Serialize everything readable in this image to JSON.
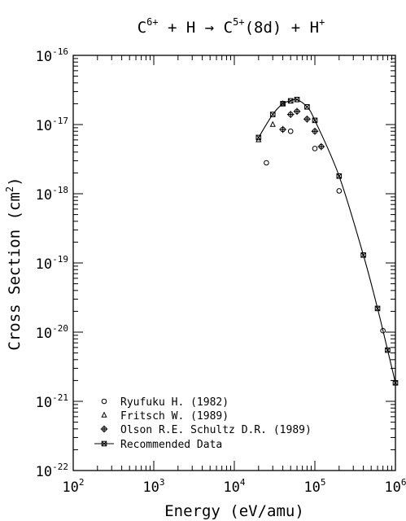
{
  "chart_data": {
    "type": "scatter",
    "title": {
      "part1": "C",
      "sup1": "6+",
      "part2": " + H → C",
      "sup2": "5+",
      "part3": "(8d) + H",
      "sup3": "+"
    },
    "xlabel": "Energy (eV/amu)",
    "ylabel": {
      "main": "Cross Section (cm",
      "sup": "2",
      "end": ")"
    },
    "x_scale": "log",
    "y_scale": "log",
    "xlim": [
      100,
      1000000
    ],
    "ylim": [
      1e-22,
      1e-16
    ],
    "x_ticks": [
      {
        "value": 100,
        "base": "10",
        "exp": "2"
      },
      {
        "value": 1000,
        "base": "10",
        "exp": "3"
      },
      {
        "value": 10000,
        "base": "10",
        "exp": "4"
      },
      {
        "value": 100000,
        "base": "10",
        "exp": "5"
      },
      {
        "value": 1000000,
        "base": "10",
        "exp": "6"
      }
    ],
    "y_ticks": [
      {
        "value": 1e-16,
        "base": "10",
        "exp": "-16"
      },
      {
        "value": 1e-17,
        "base": "10",
        "exp": "-17"
      },
      {
        "value": 1e-18,
        "base": "10",
        "exp": "-18"
      },
      {
        "value": 1e-19,
        "base": "10",
        "exp": "-19"
      },
      {
        "value": 1e-20,
        "base": "10",
        "exp": "-20"
      },
      {
        "value": 1e-21,
        "base": "10",
        "exp": "-21"
      },
      {
        "value": 1e-22,
        "base": "10",
        "exp": "-22"
      }
    ],
    "legend_position": "bottom-left",
    "series": [
      {
        "name": "Ryufuku H. (1982)",
        "marker": "circle",
        "points": [
          {
            "x": 25000,
            "y": 2.8e-18
          },
          {
            "x": 50000,
            "y": 8e-18
          },
          {
            "x": 100000,
            "y": 4.5e-18
          },
          {
            "x": 200000,
            "y": 1.1e-18
          },
          {
            "x": 700000,
            "y": 1.05e-20
          }
        ]
      },
      {
        "name": "Fritsch W. (1989)",
        "marker": "triangle",
        "points": [
          {
            "x": 20000,
            "y": 6e-18
          },
          {
            "x": 30000,
            "y": 1e-17
          },
          {
            "x": 40000,
            "y": 2e-17
          }
        ]
      },
      {
        "name": "Olson R.E. Schultz D.R. (1989)",
        "marker": "circle-plus",
        "points": [
          {
            "x": 40000,
            "y": 8.5e-18
          },
          {
            "x": 50000,
            "y": 1.4e-17
          },
          {
            "x": 60000,
            "y": 1.55e-17
          },
          {
            "x": 80000,
            "y": 1.2e-17
          },
          {
            "x": 100000,
            "y": 8e-18
          },
          {
            "x": 120000,
            "y": 4.8e-18
          }
        ]
      },
      {
        "name": "Recommended Data",
        "marker": "x-square",
        "line": true,
        "points": [
          {
            "x": 20000,
            "y": 6.5e-18
          },
          {
            "x": 30000,
            "y": 1.4e-17
          },
          {
            "x": 40000,
            "y": 2e-17
          },
          {
            "x": 50000,
            "y": 2.2e-17
          },
          {
            "x": 60000,
            "y": 2.3e-17
          },
          {
            "x": 80000,
            "y": 1.8e-17
          },
          {
            "x": 100000,
            "y": 1.15e-17
          },
          {
            "x": 200000,
            "y": 1.8e-18
          },
          {
            "x": 400000,
            "y": 1.3e-19
          },
          {
            "x": 600000,
            "y": 2.2e-20
          },
          {
            "x": 800000,
            "y": 5.5e-21
          },
          {
            "x": 1000000,
            "y": 1.85e-21
          }
        ]
      }
    ]
  }
}
